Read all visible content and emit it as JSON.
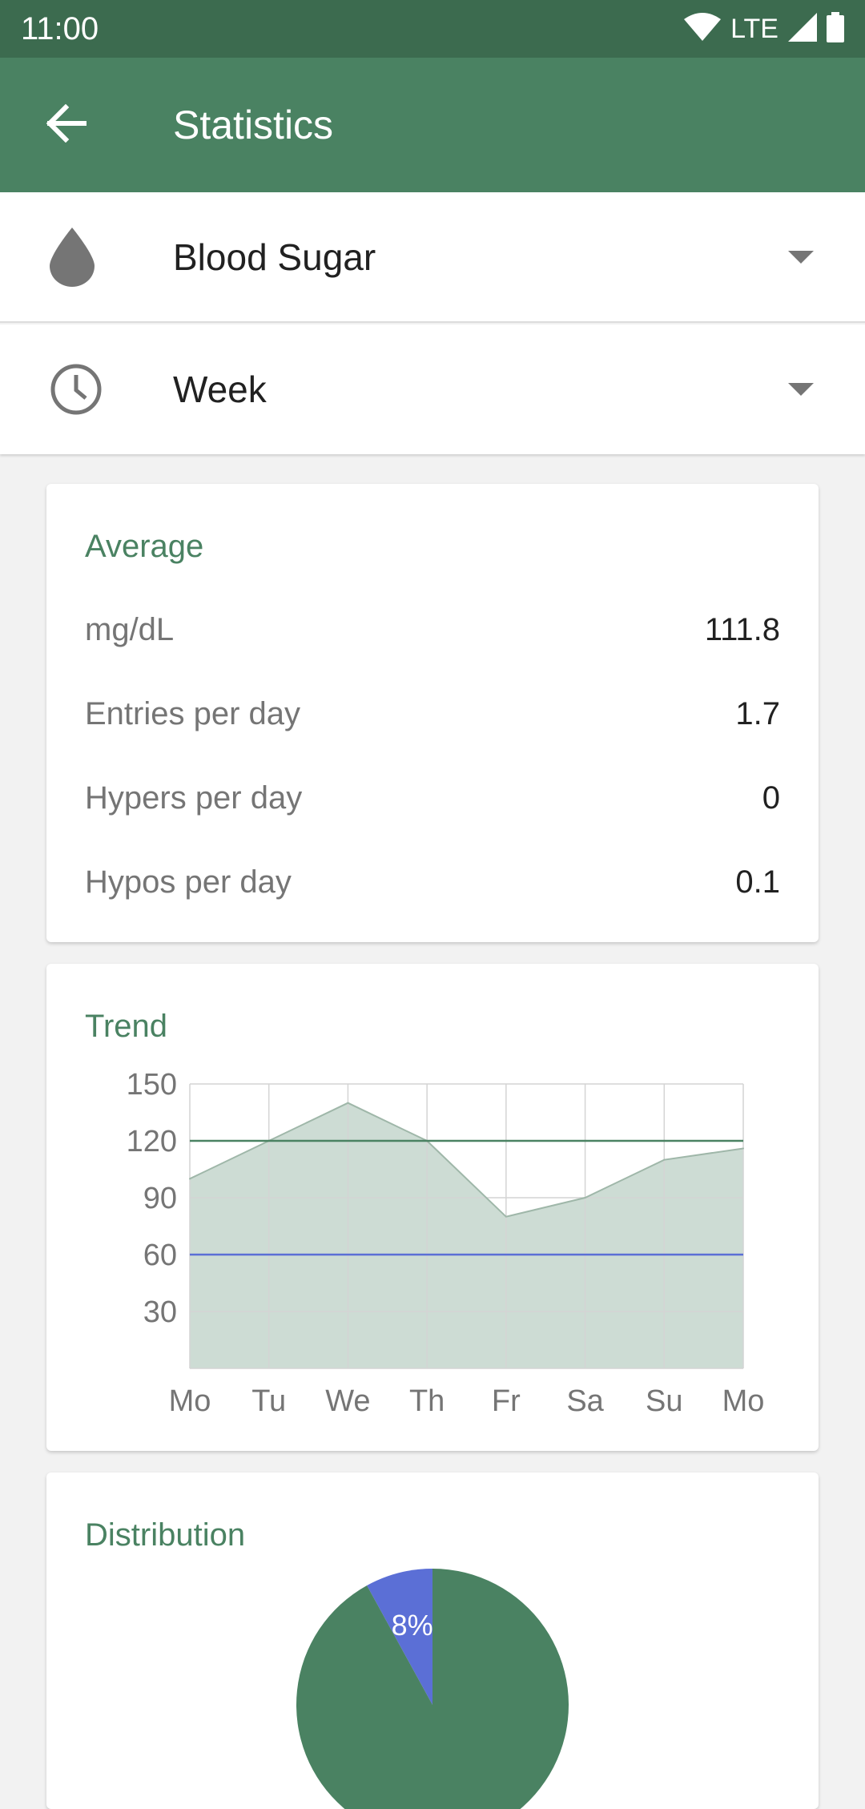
{
  "status_bar": {
    "time": "11:00",
    "network": "LTE"
  },
  "app_bar": {
    "title": "Statistics"
  },
  "selectors": {
    "category": {
      "value": "Blood Sugar"
    },
    "interval": {
      "value": "Week"
    }
  },
  "average_card": {
    "title": "Average",
    "rows": [
      {
        "label": "mg/dL",
        "value": "111.8"
      },
      {
        "label": "Entries per day",
        "value": "1.7"
      },
      {
        "label": "Hypers per day",
        "value": "0"
      },
      {
        "label": "Hypos per day",
        "value": "0.1"
      }
    ]
  },
  "trend_card": {
    "title": "Trend"
  },
  "distribution_card": {
    "title": "Distribution"
  },
  "colors": {
    "primary": "#4a8262",
    "primary_dark": "#3c6b4f",
    "area_fill": "#cddcd4",
    "hyper_line": "#4a8262",
    "hypo_line": "#5b6fd6",
    "pie_slice": "#5b6fd6"
  },
  "chart_data": [
    {
      "type": "area",
      "categories": [
        "Mo",
        "Tu",
        "We",
        "Th",
        "Fr",
        "Sa",
        "Su",
        "Mo"
      ],
      "values": [
        100,
        120,
        140,
        120,
        80,
        90,
        110,
        116
      ],
      "yticks": [
        30,
        60,
        90,
        120,
        150
      ],
      "ylim": [
        0,
        150
      ],
      "reference_lines": [
        {
          "value": 120,
          "color": "#4a8262"
        },
        {
          "value": 60,
          "color": "#5b6fd6"
        }
      ],
      "grid": true
    },
    {
      "type": "pie",
      "slices": [
        {
          "value": 8,
          "label": "8%",
          "color": "#5b6fd6"
        },
        {
          "value": 92,
          "label": "",
          "color": "#4a8262"
        }
      ]
    }
  ]
}
